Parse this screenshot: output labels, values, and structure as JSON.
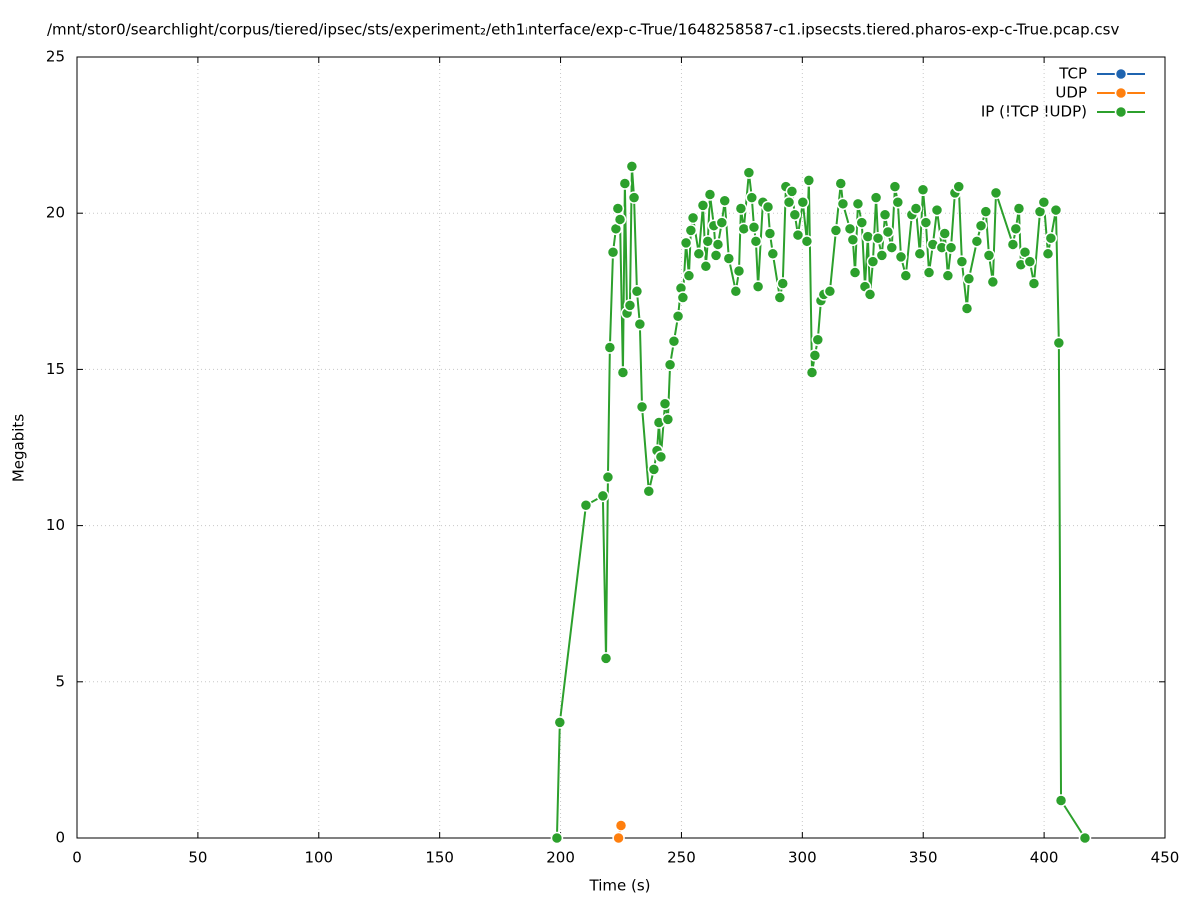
{
  "chart_data": {
    "type": "line",
    "title": "/mnt/stor0/searchlight/corpus/tiered/ipsec/sts/experiment₂/eth1ᵢnterface/exp-c-True/1648258587-c1.ipsecsts.tiered.pharos-exp-c-True.pcap.csv",
    "x_label": "Time (s)",
    "y_label": "Megabits",
    "xlim": [
      0,
      450
    ],
    "xticks": [
      0,
      50,
      100,
      150,
      200,
      250,
      300,
      350,
      400,
      450
    ],
    "ylim": [
      0,
      25
    ],
    "yticks": [
      0,
      5,
      10,
      15,
      20,
      25
    ],
    "grid": true,
    "legend": "top-right",
    "series": [
      {
        "name": "TCP",
        "color": "#1f64b0",
        "x": [],
        "values": []
      },
      {
        "name": "UDP",
        "color": "#ff7f0e",
        "x": [
          224,
          225
        ],
        "values": [
          0,
          0.4
        ]
      },
      {
        "name": "IP (!TCP  !UDP)",
        "color": "#2ca02c",
        "x": [
          198.5,
          199.7,
          210.5,
          217.5,
          218.8,
          219.6,
          220.4,
          221.7,
          222.9,
          223.7,
          224.6,
          225.8,
          226.6,
          227.5,
          228.7,
          229.5,
          230.4,
          231.6,
          232.8,
          233.7,
          236.5,
          238.6,
          239.9,
          240.7,
          241.5,
          243.2,
          244.4,
          245.3,
          246.9,
          248.6,
          249.8,
          250.6,
          251.9,
          253.1,
          253.9,
          254.8,
          257.2,
          258.9,
          260.1,
          260.9,
          261.8,
          263.4,
          264.3,
          265.1,
          266.7,
          267.9,
          269.6,
          272.5,
          273.8,
          274.6,
          275.8,
          277.9,
          279.1,
          280,
          280.8,
          281.7,
          283.7,
          285.8,
          286.6,
          287.8,
          290.7,
          291.9,
          293.2,
          294.5,
          295.7,
          296.9,
          298.2,
          300.2,
          301.9,
          302.7,
          304,
          305.2,
          306.4,
          307.7,
          308.9,
          311.4,
          313.9,
          315.9,
          316.8,
          319.7,
          320.9,
          321.8,
          323,
          324.6,
          325.9,
          327.1,
          328,
          329.2,
          330.5,
          331.3,
          332.9,
          334.2,
          335.4,
          337,
          338.3,
          339.5,
          340.8,
          342.8,
          345.3,
          347,
          348.6,
          349.9,
          351.1,
          352.4,
          354,
          355.7,
          357.7,
          358.9,
          360.2,
          361.5,
          363.1,
          364.7,
          366,
          368.1,
          368.9,
          372.2,
          373.9,
          375.9,
          377.2,
          378.8,
          380.1,
          387.1,
          388.3,
          389.6,
          390.4,
          392.1,
          394.1,
          395.8,
          398.3,
          399.9,
          401.6,
          402.8,
          404.9,
          406.1,
          407,
          416.9
        ],
        "values": [
          0,
          3.7,
          10.65,
          10.95,
          5.75,
          11.55,
          15.7,
          18.75,
          19.5,
          20.15,
          19.8,
          14.9,
          20.95,
          16.8,
          17.05,
          21.5,
          20.5,
          17.5,
          16.45,
          13.8,
          11.1,
          11.8,
          12.4,
          13.3,
          12.2,
          13.9,
          13.4,
          15.15,
          15.9,
          16.7,
          17.6,
          17.3,
          19.05,
          18.0,
          19.45,
          19.85,
          18.7,
          20.25,
          18.3,
          19.1,
          20.6,
          19.6,
          18.65,
          19.0,
          19.7,
          20.4,
          18.55,
          17.5,
          18.15,
          20.15,
          19.5,
          21.3,
          20.5,
          19.55,
          19.1,
          17.65,
          20.35,
          20.2,
          19.35,
          18.7,
          17.3,
          17.75,
          20.85,
          20.35,
          20.7,
          19.95,
          19.3,
          20.35,
          19.1,
          21.05,
          14.9,
          15.45,
          15.95,
          17.2,
          17.4,
          17.5,
          19.45,
          20.95,
          20.3,
          19.5,
          19.15,
          18.1,
          20.3,
          19.7,
          17.65,
          19.25,
          17.4,
          18.45,
          20.5,
          19.2,
          18.65,
          19.95,
          19.4,
          18.9,
          20.85,
          20.35,
          18.6,
          18.0,
          19.95,
          20.15,
          18.7,
          20.75,
          19.7,
          18.1,
          19.0,
          20.1,
          18.9,
          19.35,
          18.0,
          18.9,
          20.65,
          20.85,
          18.45,
          16.95,
          17.9,
          19.1,
          19.6,
          20.05,
          18.65,
          17.8,
          20.65,
          19.0,
          19.5,
          20.15,
          18.35,
          18.75,
          18.45,
          17.75,
          20.05,
          20.35,
          18.7,
          19.2,
          20.1,
          15.85,
          1.2,
          0
        ]
      }
    ]
  }
}
